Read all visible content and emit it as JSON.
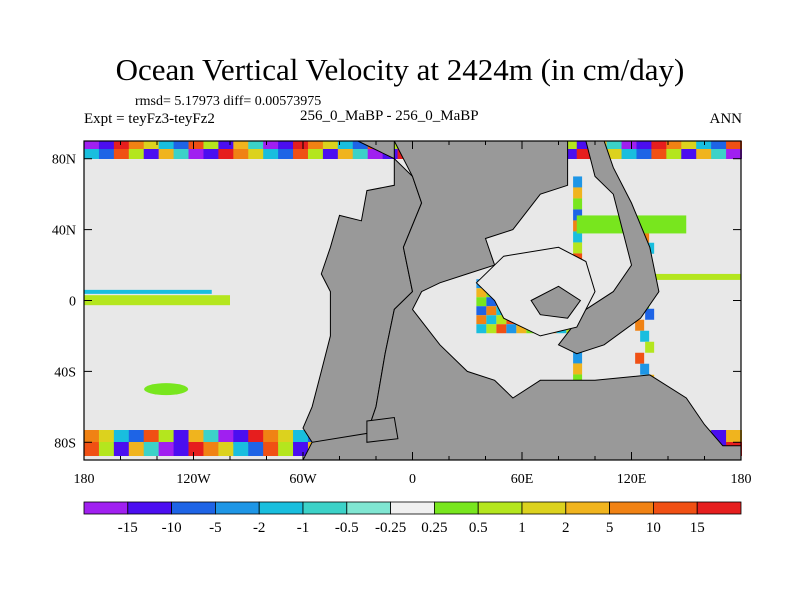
{
  "chart_data": {
    "type": "heatmap",
    "title": "Ocean Vertical Velocity at 2424m (in cm/day)",
    "stats_line": "rmsd= 5.17973 diff= 0.00573975",
    "experiment_label": "Expt = teyFz3-teyFz2",
    "case_label": "256_0_MaBP - 256_0_MaBP",
    "season_label": "ANN",
    "x_ticks": [
      "180",
      "120W",
      "60W",
      "0",
      "60E",
      "120E",
      "180"
    ],
    "x_tick_values": [
      -180,
      -120,
      -60,
      0,
      60,
      120,
      180
    ],
    "y_ticks": [
      "80N",
      "40N",
      "0",
      "40S",
      "80S"
    ],
    "y_tick_values": [
      80,
      40,
      0,
      -40,
      -80
    ],
    "xlim": [
      -180,
      180
    ],
    "ylim": [
      -90,
      90
    ],
    "colorbar_labels": [
      "-15",
      "-10",
      "-5",
      "-2",
      "-1",
      "-0.5",
      "-0.25",
      "0.25",
      "0.5",
      "1",
      "2",
      "5",
      "10",
      "15"
    ],
    "colorbar_colors": [
      "#a020f0",
      "#4b0ef0",
      "#1e64e6",
      "#1e96e6",
      "#19bede",
      "#3cd2c8",
      "#80e6d2",
      "#f0f0f0",
      "#78e61e",
      "#b4e61e",
      "#dcd21e",
      "#f0b41e",
      "#f08214",
      "#f05014",
      "#e61e1e"
    ],
    "land_color": "#999999",
    "near_zero_color": "#e8e8e8"
  }
}
